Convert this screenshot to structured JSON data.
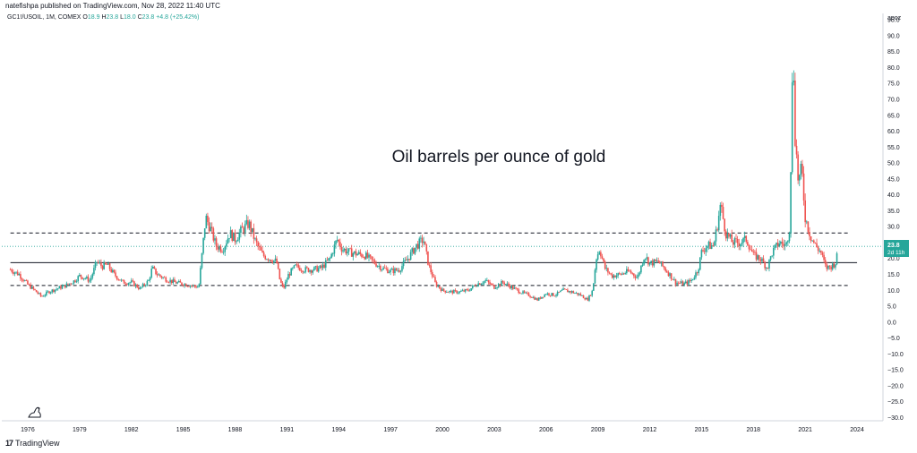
{
  "header": {
    "publisher": "natefishpa published on TradingView.com, Nov 28, 2022 11:40 UTC"
  },
  "symbol_bar": {
    "symbol": "GC1!/USOIL, 1M, COMEX",
    "open_label": "O",
    "open": "18.9",
    "high_label": "H",
    "high": "23.8",
    "low_label": "L",
    "low": "18.0",
    "close_label": "C",
    "close": "23.8",
    "change": "+4.8 (+25.42%)"
  },
  "footer": {
    "brand": "TradingView"
  },
  "chart_data": {
    "type": "candlestick",
    "title": "Oil barrels per ounce of gold",
    "price_scale_mode": "apoz",
    "y_ticks": [
      "95.0",
      "90.0",
      "85.0",
      "80.0",
      "75.0",
      "70.0",
      "65.0",
      "60.0",
      "55.0",
      "50.0",
      "45.0",
      "40.0",
      "35.0",
      "30.0",
      "25.0",
      "20.0",
      "15.0",
      "10.0",
      "5.0",
      "0.0",
      "−5.0",
      "−10.0",
      "−15.0",
      "−20.0",
      "−25.0",
      "−30.0"
    ],
    "ylim": [
      -31,
      97
    ],
    "x_ticks": [
      "1976",
      "1979",
      "1982",
      "1985",
      "1988",
      "1991",
      "1994",
      "1997",
      "2000",
      "2003",
      "2006",
      "2009",
      "2012",
      "2015",
      "2018",
      "2021",
      "2024"
    ],
    "xlim": [
      1974.5,
      2025.5
    ],
    "last_price": {
      "value": 23.8,
      "label": "23.8",
      "countdown": "2d 11h"
    },
    "horizontal_lines": [
      {
        "style": "dashed",
        "value": 28.0
      },
      {
        "style": "solid",
        "value": 18.7
      },
      {
        "style": "dashed",
        "value": 11.5
      }
    ],
    "colors": {
      "up": "#26a69a",
      "down": "#ef5350",
      "last_price": "#26a69a",
      "line": "#131722"
    },
    "series": [
      {
        "name": "GC1!/USOIL",
        "points": [
          [
            1975.0,
            16.5
          ],
          [
            1975.5,
            15.0
          ],
          [
            1976.0,
            11.8
          ],
          [
            1976.5,
            9.5
          ],
          [
            1976.8,
            8.0
          ],
          [
            1977.2,
            9.5
          ],
          [
            1977.7,
            10.5
          ],
          [
            1978.2,
            11.5
          ],
          [
            1978.7,
            13.0
          ],
          [
            1979.0,
            14.5
          ],
          [
            1979.3,
            14.0
          ],
          [
            1979.6,
            13.0
          ],
          [
            1980.0,
            19.0
          ],
          [
            1980.3,
            17.5
          ],
          [
            1980.6,
            18.0
          ],
          [
            1981.0,
            15.0
          ],
          [
            1981.5,
            12.5
          ],
          [
            1982.0,
            12.5
          ],
          [
            1982.5,
            10.5
          ],
          [
            1983.0,
            13.0
          ],
          [
            1983.2,
            17.0
          ],
          [
            1983.5,
            15.0
          ],
          [
            1984.0,
            13.5
          ],
          [
            1984.5,
            12.5
          ],
          [
            1985.0,
            12.0
          ],
          [
            1985.5,
            11.5
          ],
          [
            1985.9,
            11.0
          ],
          [
            1986.1,
            22.0
          ],
          [
            1986.3,
            33.0
          ],
          [
            1986.6,
            29.0
          ],
          [
            1986.9,
            24.0
          ],
          [
            1987.3,
            23.0
          ],
          [
            1987.7,
            28.0
          ],
          [
            1988.0,
            26.0
          ],
          [
            1988.4,
            29.0
          ],
          [
            1988.8,
            31.0
          ],
          [
            1989.2,
            25.0
          ],
          [
            1989.6,
            21.0
          ],
          [
            1990.0,
            20.0
          ],
          [
            1990.4,
            19.0
          ],
          [
            1990.6,
            13.0
          ],
          [
            1990.8,
            10.5
          ],
          [
            1991.1,
            15.0
          ],
          [
            1991.5,
            17.5
          ],
          [
            1992.0,
            16.5
          ],
          [
            1992.5,
            16.5
          ],
          [
            1993.0,
            17.0
          ],
          [
            1993.5,
            20.0
          ],
          [
            1993.9,
            26.0
          ],
          [
            1994.2,
            23.0
          ],
          [
            1994.6,
            22.0
          ],
          [
            1995.0,
            21.5
          ],
          [
            1995.5,
            21.0
          ],
          [
            1996.0,
            19.0
          ],
          [
            1996.5,
            17.0
          ],
          [
            1997.0,
            16.0
          ],
          [
            1997.5,
            16.5
          ],
          [
            1998.0,
            20.0
          ],
          [
            1998.5,
            24.0
          ],
          [
            1998.9,
            26.0
          ],
          [
            1999.2,
            18.0
          ],
          [
            1999.6,
            12.0
          ],
          [
            2000.0,
            10.0
          ],
          [
            2000.5,
            9.5
          ],
          [
            2001.0,
            9.5
          ],
          [
            2001.5,
            10.0
          ],
          [
            2002.0,
            12.0
          ],
          [
            2002.5,
            13.0
          ],
          [
            2003.0,
            11.0
          ],
          [
            2003.5,
            12.5
          ],
          [
            2004.0,
            11.0
          ],
          [
            2004.5,
            9.5
          ],
          [
            2005.0,
            8.5
          ],
          [
            2005.5,
            7.0
          ],
          [
            2006.0,
            9.0
          ],
          [
            2006.5,
            8.5
          ],
          [
            2007.0,
            10.0
          ],
          [
            2007.5,
            9.5
          ],
          [
            2008.0,
            8.5
          ],
          [
            2008.4,
            7.0
          ],
          [
            2008.7,
            10.0
          ],
          [
            2008.9,
            20.0
          ],
          [
            2009.1,
            23.0
          ],
          [
            2009.4,
            17.0
          ],
          [
            2009.8,
            14.5
          ],
          [
            2010.3,
            15.0
          ],
          [
            2010.8,
            16.0
          ],
          [
            2011.3,
            14.0
          ],
          [
            2011.7,
            21.0
          ],
          [
            2012.0,
            18.5
          ],
          [
            2012.5,
            19.0
          ],
          [
            2013.0,
            16.0
          ],
          [
            2013.5,
            12.5
          ],
          [
            2014.0,
            12.0
          ],
          [
            2014.4,
            13.0
          ],
          [
            2014.8,
            16.5
          ],
          [
            2015.0,
            22.0
          ],
          [
            2015.3,
            24.0
          ],
          [
            2015.7,
            24.0
          ],
          [
            2015.9,
            30.0
          ],
          [
            2016.1,
            37.0
          ],
          [
            2016.4,
            28.0
          ],
          [
            2016.8,
            25.0
          ],
          [
            2017.2,
            25.0
          ],
          [
            2017.6,
            26.0
          ],
          [
            2018.0,
            21.0
          ],
          [
            2018.4,
            20.0
          ],
          [
            2018.8,
            17.0
          ],
          [
            2019.1,
            22.0
          ],
          [
            2019.5,
            25.0
          ],
          [
            2019.9,
            24.0
          ],
          [
            2020.1,
            30.0
          ],
          [
            2020.3,
            88.0
          ],
          [
            2020.4,
            60.0
          ],
          [
            2020.6,
            44.0
          ],
          [
            2020.8,
            48.0
          ],
          [
            2021.0,
            33.0
          ],
          [
            2021.3,
            27.0
          ],
          [
            2021.6,
            24.0
          ],
          [
            2021.9,
            22.0
          ],
          [
            2022.2,
            17.0
          ],
          [
            2022.5,
            17.5
          ],
          [
            2022.8,
            18.9
          ],
          [
            2022.9,
            23.8
          ]
        ]
      }
    ]
  }
}
